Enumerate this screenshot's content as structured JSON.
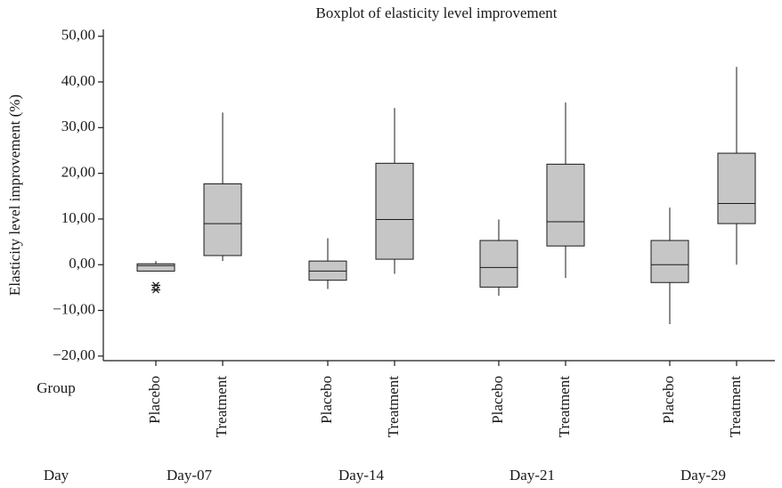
{
  "chart_data": {
    "type": "box",
    "title": "Boxplot of elasticity level improvement",
    "ylabel": "Elasticity level improvement (%)",
    "group_label": "Group",
    "day_label": "Day",
    "color": "#c6c6c6",
    "ylim": [
      -21,
      51.5
    ],
    "yticks": [
      {
        "value": -20,
        "label": "−20,00"
      },
      {
        "value": -10,
        "label": "−10,00"
      },
      {
        "value": 0,
        "label": "0,00"
      },
      {
        "value": 10,
        "label": "10,00"
      },
      {
        "value": 20,
        "label": "20,00"
      },
      {
        "value": 30,
        "label": "30,00"
      },
      {
        "value": 40,
        "label": "40,00"
      },
      {
        "value": 50,
        "label": "50,00"
      }
    ],
    "days": [
      "Day-07",
      "Day-14",
      "Day-21",
      "Day-29"
    ],
    "boxes": [
      {
        "group": "Placebo",
        "min": -1.4,
        "q1": -1.4,
        "median": -0.2,
        "q3": 0.2,
        "max": 0.8,
        "outliers": [
          -4.5,
          -5.5
        ]
      },
      {
        "group": "Treatment",
        "min": 0.8,
        "q1": 2,
        "median": 9,
        "q3": 17.7,
        "max": 33.3
      },
      {
        "group": "Placebo",
        "min": -5.3,
        "q1": -3.4,
        "median": -1.4,
        "q3": 0.8,
        "max": 5.8
      },
      {
        "group": "Treatment",
        "min": -2,
        "q1": 1.2,
        "median": 9.9,
        "q3": 22.2,
        "max": 34.3
      },
      {
        "group": "Placebo",
        "min": -6.8,
        "q1": -4.9,
        "median": -0.6,
        "q3": 5.3,
        "max": 9.9
      },
      {
        "group": "Treatment",
        "min": -2.9,
        "q1": 4.1,
        "median": 9.4,
        "q3": 22,
        "max": 35.5
      },
      {
        "group": "Placebo",
        "min": -13,
        "q1": -3.9,
        "median": 0,
        "q3": 5.3,
        "max": 12.5
      },
      {
        "group": "Treatment",
        "min": 0,
        "q1": 9,
        "median": 13.4,
        "q3": 24.4,
        "max": 43.3
      }
    ]
  }
}
